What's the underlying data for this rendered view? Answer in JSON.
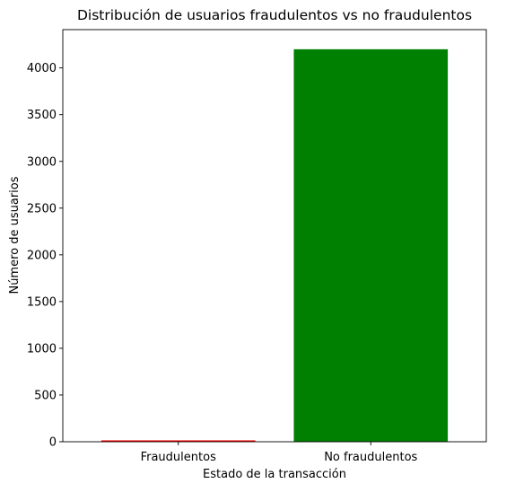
{
  "chart_data": {
    "type": "bar",
    "title": "Distribución de usuarios fraudulentos vs no fraudulentos",
    "xlabel": "Estado de la transacción",
    "ylabel": "Número de usuarios",
    "categories": [
      "Fraudulentos",
      "No fraudulentos"
    ],
    "values": [
      15,
      4200
    ],
    "bar_colors": [
      "#ff0000",
      "#008000"
    ],
    "ylim": [
      0,
      4410
    ],
    "yticks": [
      0,
      500,
      1000,
      1500,
      2000,
      2500,
      3000,
      3500,
      4000
    ],
    "grid": false,
    "legend": "none"
  }
}
